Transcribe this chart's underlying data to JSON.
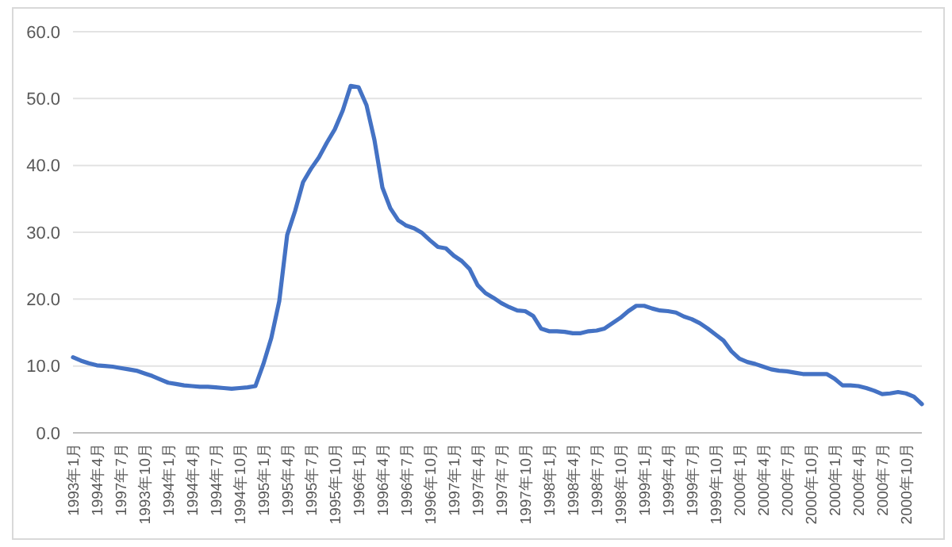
{
  "chart_data": {
    "type": "line",
    "categories": [
      "1993年1月",
      null,
      null,
      "1994年4月",
      null,
      null,
      "1997年7月",
      null,
      null,
      "1993年10月",
      null,
      null,
      "1994年1月",
      null,
      null,
      "1994年4月",
      null,
      null,
      "1994年7月",
      null,
      null,
      "1994年10月",
      null,
      null,
      "1995年1月",
      null,
      null,
      "1995年4月",
      null,
      null,
      "1995年7月",
      null,
      null,
      "1995年10月",
      null,
      null,
      "1996年1月",
      null,
      null,
      "1996年4月",
      null,
      null,
      "1996年7月",
      null,
      null,
      "1996年10月",
      null,
      null,
      "1997年1月",
      null,
      null,
      "1997年4月",
      null,
      null,
      "1997年7月",
      null,
      null,
      "1997年10月",
      null,
      null,
      "1998年1月",
      null,
      null,
      "1998年4月",
      null,
      null,
      "1998年7月",
      null,
      null,
      "1998年10月",
      null,
      null,
      "1999年1月",
      null,
      null,
      "1999年4月",
      null,
      null,
      "1999年7月",
      null,
      null,
      "1999年10月",
      null,
      null,
      "2000年1月",
      null,
      null,
      "2000年4月",
      null,
      null,
      "2000年7月",
      null,
      null,
      "2000年10月",
      null,
      null,
      "2000年1月",
      null,
      null,
      "2000年4月",
      null,
      null,
      "2000年7月",
      null,
      null,
      "2000年10月",
      null,
      null
    ],
    "series": [
      {
        "color": "#4472c4",
        "values": [
          11.3,
          10.8,
          10.4,
          10.1,
          10.0,
          9.9,
          9.7,
          9.5,
          9.3,
          8.9,
          8.5,
          8.0,
          7.5,
          7.3,
          7.1,
          7.0,
          6.9,
          6.9,
          6.8,
          6.7,
          6.6,
          6.7,
          6.8,
          7.0,
          10.3,
          14.2,
          19.7,
          29.6,
          33.2,
          37.5,
          39.5,
          41.2,
          43.4,
          45.4,
          48.2,
          51.9,
          51.7,
          49.0,
          43.8,
          36.7,
          33.6,
          31.8,
          31.0,
          30.6,
          29.9,
          28.8,
          27.8,
          27.6,
          26.5,
          25.7,
          24.5,
          22.1,
          20.9,
          20.2,
          19.4,
          18.8,
          18.3,
          18.2,
          17.5,
          15.6,
          15.2,
          15.2,
          15.1,
          14.9,
          14.9,
          15.2,
          15.3,
          15.6,
          16.4,
          17.2,
          18.2,
          19.0,
          19.0,
          18.6,
          18.3,
          18.2,
          18.0,
          17.4,
          17.0,
          16.4,
          15.6,
          14.7,
          13.8,
          12.2,
          11.1,
          10.6,
          10.3,
          9.9,
          9.5,
          9.3,
          9.2,
          9.0,
          8.8,
          8.8,
          8.8,
          8.8,
          8.1,
          7.1,
          7.1,
          7.0,
          6.7,
          6.3,
          5.8,
          5.9,
          6.1,
          5.9,
          5.4,
          4.3
        ]
      }
    ],
    "ylim": [
      0,
      60
    ],
    "yticks": [
      {
        "value": 0,
        "label": "0.0"
      },
      {
        "value": 10,
        "label": "10.0"
      },
      {
        "value": 20,
        "label": "20.0"
      },
      {
        "value": 30,
        "label": "30.0"
      },
      {
        "value": 40,
        "label": "40.0"
      },
      {
        "value": 50,
        "label": "50.0"
      },
      {
        "value": 60,
        "label": "60.0"
      }
    ],
    "grid": "y",
    "marker": "none",
    "line_style": "solid"
  }
}
